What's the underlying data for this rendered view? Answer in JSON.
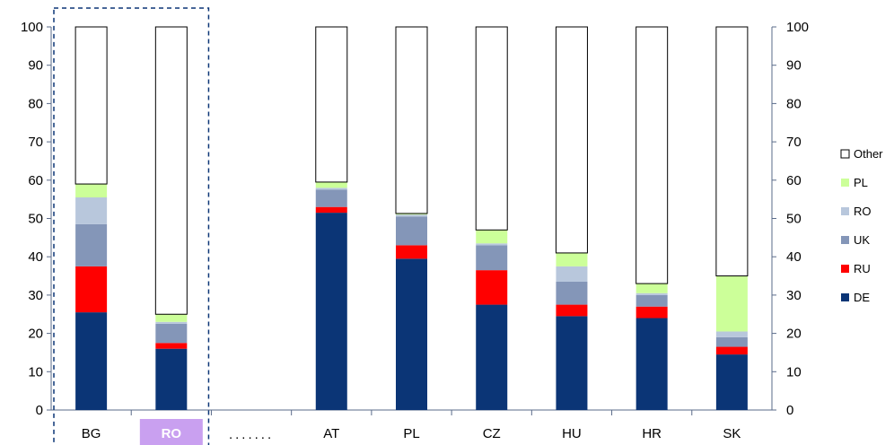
{
  "chart_data": {
    "type": "bar",
    "stacked": true,
    "categories": [
      "BG",
      "RO",
      "",
      "AT",
      "PL",
      "CZ",
      "HU",
      "HR",
      "SK"
    ],
    "gap_marker": ".......",
    "highlight": {
      "category": "RO",
      "label_color": "#ffffff",
      "label_bg": "#c9a0f0"
    },
    "dashed_box": [
      "BG",
      "RO"
    ],
    "ylim": [
      0,
      100
    ],
    "yticks": [
      0,
      10,
      20,
      30,
      40,
      50,
      60,
      70,
      80,
      90,
      100
    ],
    "grid": false,
    "legend_position": "right",
    "series": [
      {
        "name": "DE",
        "color": "#0b3576",
        "values": [
          25.5,
          16,
          null,
          51.5,
          39.5,
          27.5,
          24.5,
          24,
          14.5
        ]
      },
      {
        "name": "RU",
        "color": "#ff0000",
        "values": [
          12,
          1.5,
          null,
          1.5,
          3.5,
          9,
          3,
          3,
          2
        ]
      },
      {
        "name": "UK",
        "color": "#8496b8",
        "values": [
          11,
          5,
          null,
          4.5,
          7.5,
          6.5,
          6,
          3,
          2.5
        ]
      },
      {
        "name": "RO",
        "color": "#b8c7dc",
        "values": [
          7,
          0.5,
          null,
          0.5,
          0.5,
          0.5,
          4,
          0.5,
          1.5
        ]
      },
      {
        "name": "PL",
        "color": "#ccff99",
        "values": [
          3.5,
          2,
          null,
          1.5,
          0.3,
          3.5,
          3.5,
          2.5,
          14.5
        ]
      },
      {
        "name": "Other",
        "color": "#ffffff",
        "values": [
          41,
          75,
          null,
          40.5,
          48.7,
          53,
          59,
          67,
          65
        ]
      }
    ]
  }
}
